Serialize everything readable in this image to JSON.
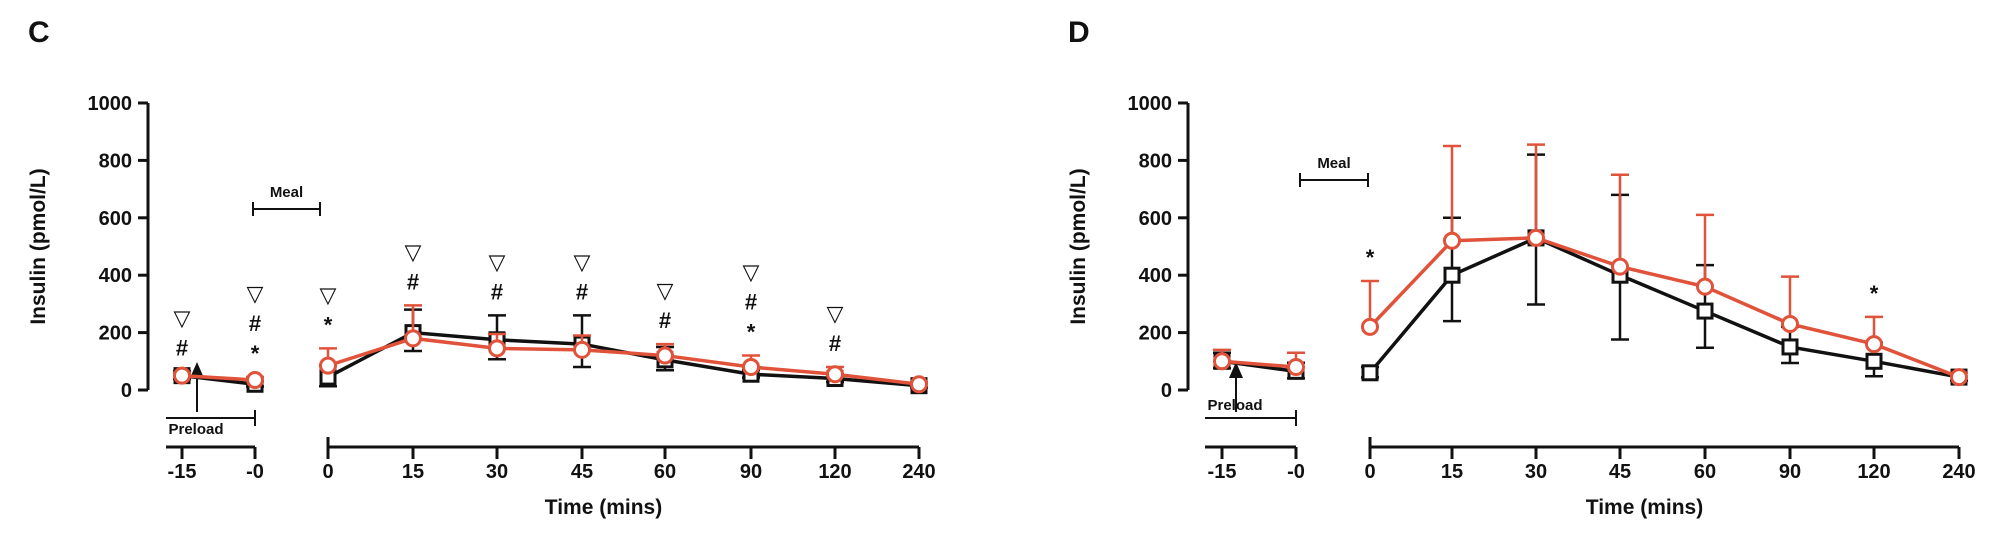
{
  "chart_data": [
    {
      "panel_label": "C",
      "type": "line",
      "ylabel": "Insulin (pmol/L)",
      "xlabel": "Time (mins)",
      "ylim": [
        0,
        1000
      ],
      "yticks": [
        "0",
        "200",
        "400",
        "600",
        "800",
        "1000"
      ],
      "pre_segment": {
        "ticks": [
          "-15",
          "-0"
        ],
        "annotation": "Preload"
      },
      "post_segment": {
        "ticks": [
          "0",
          "15",
          "30",
          "45",
          "60",
          "90",
          "120",
          "240"
        ]
      },
      "meal_annotation": "Meal",
      "series": [
        {
          "color": "#111111",
          "marker": "square",
          "pre": [
            {
              "y": 50,
              "err": 15
            },
            {
              "y": 20,
              "err": 10
            }
          ],
          "post": [
            {
              "y": 45,
              "err": 40
            },
            {
              "y": 200,
              "err": 80
            },
            {
              "y": 175,
              "err": 85
            },
            {
              "y": 160,
              "err": 100
            },
            {
              "y": 105,
              "err": 45
            },
            {
              "y": 55,
              "err": 15
            },
            {
              "y": 40,
              "err": 15
            },
            {
              "y": 15,
              "err": 8
            }
          ]
        },
        {
          "color": "#e0523a",
          "marker": "circle",
          "pre": [
            {
              "y": 50,
              "err": 10
            },
            {
              "y": 35,
              "err": 10
            }
          ],
          "post": [
            {
              "y": 85,
              "err": 60
            },
            {
              "y": 180,
              "err": 115
            },
            {
              "y": 145,
              "err": 50
            },
            {
              "y": 140,
              "err": 50
            },
            {
              "y": 120,
              "err": 40
            },
            {
              "y": 80,
              "err": 40
            },
            {
              "y": 55,
              "err": 25
            },
            {
              "y": 20,
              "err": 8
            }
          ]
        }
      ],
      "significance": {
        "pre": [
          [
            "▽",
            "#"
          ],
          [
            "▽",
            "#",
            "*"
          ]
        ],
        "post": [
          [
            "▽",
            "*"
          ],
          [
            "▽",
            "#"
          ],
          [
            "▽",
            "#"
          ],
          [
            "▽",
            "#"
          ],
          [
            "▽",
            "#"
          ],
          [
            "▽",
            "#",
            "*"
          ],
          [
            "▽",
            "#"
          ],
          []
        ]
      }
    },
    {
      "panel_label": "D",
      "type": "line",
      "ylabel": "Insulin (pmol/L)",
      "xlabel": "Time (mins)",
      "ylim": [
        0,
        1000
      ],
      "yticks": [
        "0",
        "200",
        "400",
        "600",
        "800",
        "1000"
      ],
      "pre_segment": {
        "ticks": [
          "-15",
          "-0"
        ],
        "annotation": "Preload"
      },
      "post_segment": {
        "ticks": [
          "0",
          "15",
          "30",
          "45",
          "60",
          "90",
          "120",
          "240"
        ]
      },
      "meal_annotation": "Meal",
      "series": [
        {
          "color": "#111111",
          "marker": "square",
          "pre": [
            {
              "y": 100,
              "err": 30
            },
            {
              "y": 65,
              "err": 30
            }
          ],
          "post": [
            {
              "y": 60,
              "err": 20
            },
            {
              "y": 400,
              "err": 200
            },
            {
              "y": 530,
              "err": 290
            },
            {
              "y": 400,
              "err": 280
            },
            {
              "y": 275,
              "err": 160
            },
            {
              "y": 150,
              "err": 70
            },
            {
              "y": 100,
              "err": 65
            },
            {
              "y": 45,
              "err": 15
            }
          ]
        },
        {
          "color": "#e0523a",
          "marker": "circle",
          "pre": [
            {
              "y": 100,
              "err": 40
            },
            {
              "y": 80,
              "err": 50
            }
          ],
          "post": [
            {
              "y": 220,
              "err": 160
            },
            {
              "y": 520,
              "err": 330
            },
            {
              "y": 530,
              "err": 325
            },
            {
              "y": 430,
              "err": 320
            },
            {
              "y": 360,
              "err": 250
            },
            {
              "y": 230,
              "err": 165
            },
            {
              "y": 160,
              "err": 95
            },
            {
              "y": 45,
              "err": 15
            }
          ]
        }
      ],
      "significance": {
        "pre": [
          [],
          []
        ],
        "post": [
          [
            "*"
          ],
          [],
          [],
          [],
          [],
          [],
          [
            "*"
          ],
          []
        ]
      }
    }
  ]
}
